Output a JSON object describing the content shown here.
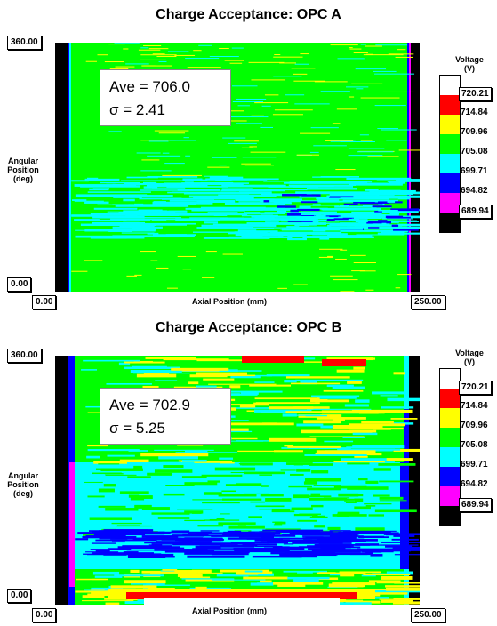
{
  "chart_data": [
    {
      "type": "heatmap",
      "title": "Charge Acceptance: OPC A",
      "xlabel": "Axial Position (mm)",
      "ylabel": "Angular Position (deg)",
      "xlim": [
        0,
        250
      ],
      "ylim": [
        0,
        360
      ],
      "x_tick_labels": [
        "0.00",
        "250.00"
      ],
      "y_tick_labels": [
        "0.00",
        "360.00"
      ],
      "stats": {
        "ave": "Ave = 706.0",
        "sigma": "σ = 2.41"
      },
      "legend": {
        "title_line1": "Voltage",
        "title_line2": "(V)",
        "levels": [
          "720.21",
          "714.84",
          "709.96",
          "705.08",
          "699.71",
          "694.82",
          "689.94"
        ],
        "colors": [
          "#ffffff",
          "#ff0000",
          "#ffff00",
          "#00ff00",
          "#00ffff",
          "#0000ff",
          "#ff00ff",
          "#000000"
        ]
      }
    },
    {
      "type": "heatmap",
      "title": "Charge Acceptance: OPC B",
      "xlabel": "Axial Position (mm)",
      "ylabel": "Angular Position (deg)",
      "xlim": [
        0,
        250
      ],
      "ylim": [
        0,
        360
      ],
      "x_tick_labels": [
        "0.00",
        "250.00"
      ],
      "y_tick_labels": [
        "0.00",
        "360.00"
      ],
      "stats": {
        "ave": "Ave = 702.9",
        "sigma": "σ = 5.25"
      },
      "legend": {
        "title_line1": "Voltage",
        "title_line2": "(V)",
        "levels": [
          "720.21",
          "714.84",
          "709.96",
          "705.08",
          "699.71",
          "694.82",
          "689.94"
        ],
        "colors": [
          "#ffffff",
          "#ff0000",
          "#ffff00",
          "#00ff00",
          "#00ffff",
          "#0000ff",
          "#ff00ff",
          "#000000"
        ]
      }
    }
  ]
}
